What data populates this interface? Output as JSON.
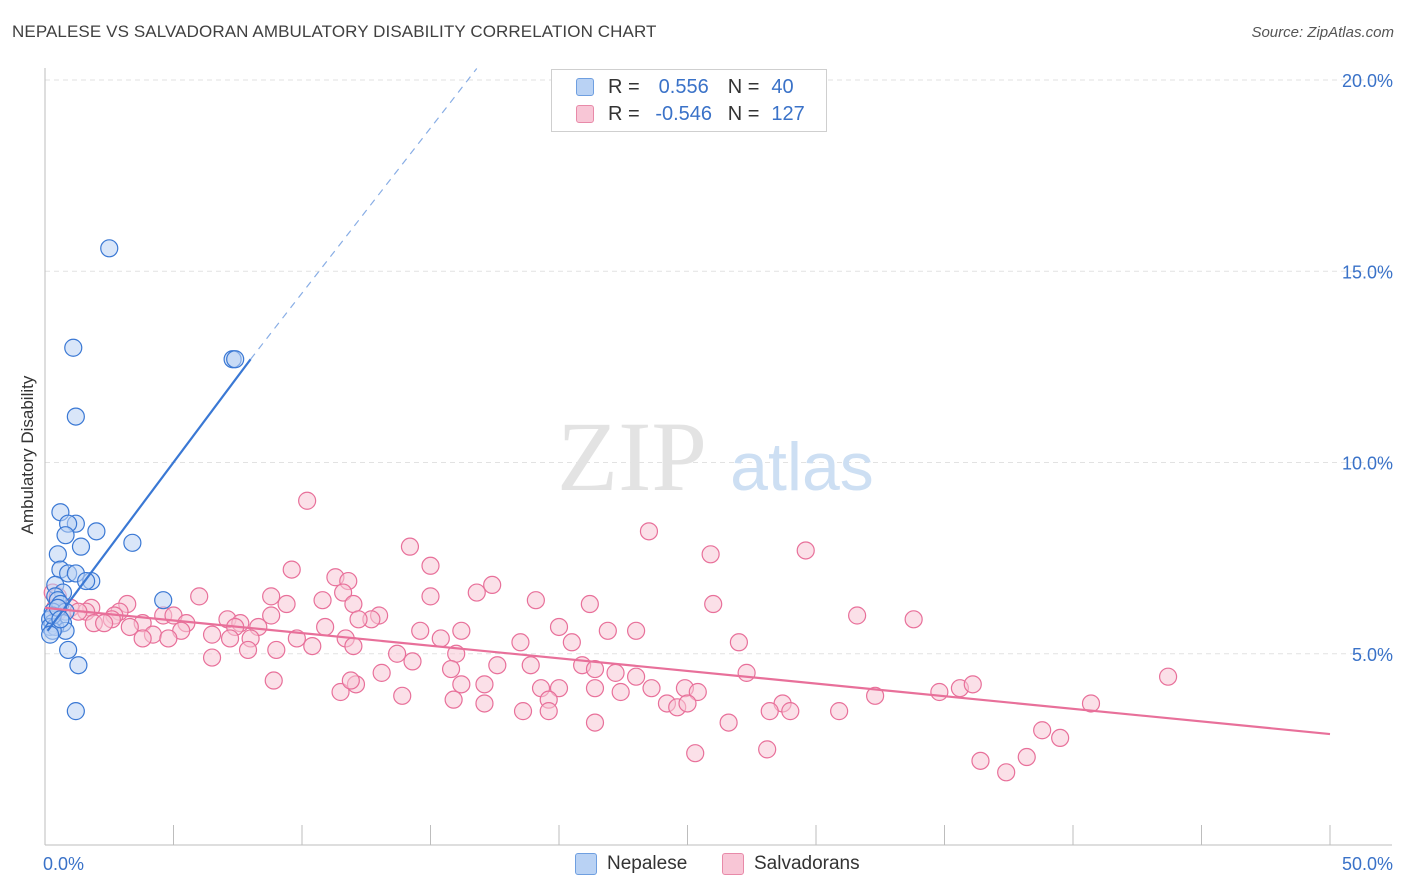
{
  "title": "NEPALESE VS SALVADORAN AMBULATORY DISABILITY CORRELATION CHART",
  "source": "Source: ZipAtlas.com",
  "watermark": {
    "zip": "ZIP",
    "atlas": "atlas"
  },
  "legend": {
    "r_label": "R =",
    "n_label": "N =",
    "nepalese": {
      "r": "0.556",
      "n": "40"
    },
    "salvadoran": {
      "r": "-0.546",
      "n": "127"
    }
  },
  "bottom_legend": {
    "nepalese": "Nepalese",
    "salvadoran": "Salvadorans"
  },
  "colors": {
    "blue": "#3a78d4",
    "pink": "#e8709a",
    "blue_fill": "#b9d2f4",
    "pink_fill": "#f8c6d6"
  },
  "chart_data": {
    "type": "scatter",
    "title": "NEPALESE VS SALVADORAN AMBULATORY DISABILITY CORRELATION CHART",
    "xlabel": "",
    "ylabel": "Ambulatory Disability",
    "xlim": [
      0,
      50
    ],
    "ylim": [
      0,
      20
    ],
    "x_tick_labels": [
      "0.0%",
      "50.0%"
    ],
    "y_ticks": [
      5,
      10,
      15,
      20
    ],
    "y_tick_labels": [
      "5.0%",
      "10.0%",
      "15.0%",
      "20.0%"
    ],
    "series": [
      {
        "name": "Nepalese",
        "color": "#3a78d4",
        "r": 0.556,
        "n": 40,
        "trend": {
          "x": [
            0.1,
            8.0
          ],
          "y": [
            5.6,
            12.7
          ],
          "dashed_to": [
            16.8,
            20.3
          ]
        },
        "points": [
          [
            2.5,
            15.6
          ],
          [
            1.1,
            13.0
          ],
          [
            7.3,
            12.7
          ],
          [
            7.4,
            12.7
          ],
          [
            1.2,
            11.2
          ],
          [
            0.6,
            8.7
          ],
          [
            1.2,
            8.4
          ],
          [
            0.9,
            8.4
          ],
          [
            2.0,
            8.2
          ],
          [
            0.8,
            8.1
          ],
          [
            3.4,
            7.9
          ],
          [
            1.4,
            7.8
          ],
          [
            0.5,
            7.6
          ],
          [
            0.6,
            7.2
          ],
          [
            0.9,
            7.1
          ],
          [
            1.2,
            7.1
          ],
          [
            1.8,
            6.9
          ],
          [
            1.6,
            6.9
          ],
          [
            0.4,
            6.8
          ],
          [
            0.7,
            6.6
          ],
          [
            0.4,
            6.5
          ],
          [
            4.6,
            6.4
          ],
          [
            0.5,
            6.4
          ],
          [
            0.6,
            6.3
          ],
          [
            0.3,
            6.1
          ],
          [
            0.8,
            6.1
          ],
          [
            0.2,
            5.9
          ],
          [
            0.7,
            5.8
          ],
          [
            0.3,
            5.8
          ],
          [
            0.2,
            5.7
          ],
          [
            0.4,
            5.7
          ],
          [
            0.8,
            5.6
          ],
          [
            0.3,
            5.6
          ],
          [
            0.2,
            5.5
          ],
          [
            0.9,
            5.1
          ],
          [
            1.3,
            4.7
          ],
          [
            1.2,
            3.5
          ],
          [
            0.3,
            6.0
          ],
          [
            0.5,
            6.2
          ],
          [
            0.6,
            5.9
          ]
        ]
      },
      {
        "name": "Salvadorans",
        "color": "#e8709a",
        "r": -0.546,
        "n": 127,
        "trend": {
          "x": [
            0.0,
            50.0
          ],
          "y": [
            6.2,
            2.9
          ]
        },
        "points": [
          [
            10.2,
            9.0
          ],
          [
            23.5,
            8.2
          ],
          [
            14.2,
            7.8
          ],
          [
            25.9,
            7.6
          ],
          [
            29.6,
            7.7
          ],
          [
            15.0,
            7.3
          ],
          [
            9.6,
            7.2
          ],
          [
            11.3,
            7.0
          ],
          [
            11.8,
            6.9
          ],
          [
            17.4,
            6.8
          ],
          [
            11.6,
            6.6
          ],
          [
            16.8,
            6.6
          ],
          [
            0.3,
            6.6
          ],
          [
            0.5,
            6.5
          ],
          [
            8.8,
            6.5
          ],
          [
            6.0,
            6.5
          ],
          [
            15.0,
            6.5
          ],
          [
            10.8,
            6.4
          ],
          [
            9.4,
            6.3
          ],
          [
            19.1,
            6.4
          ],
          [
            12.0,
            6.3
          ],
          [
            21.2,
            6.3
          ],
          [
            26.0,
            6.3
          ],
          [
            3.2,
            6.3
          ],
          [
            1.0,
            6.2
          ],
          [
            1.8,
            6.2
          ],
          [
            2.9,
            6.1
          ],
          [
            0.4,
            6.2
          ],
          [
            0.5,
            6.1
          ],
          [
            1.6,
            6.1
          ],
          [
            13.0,
            6.0
          ],
          [
            1.3,
            6.1
          ],
          [
            2.7,
            6.0
          ],
          [
            8.8,
            6.0
          ],
          [
            4.6,
            6.0
          ],
          [
            5.0,
            6.0
          ],
          [
            31.6,
            6.0
          ],
          [
            33.8,
            5.9
          ],
          [
            2.6,
            5.9
          ],
          [
            12.7,
            5.9
          ],
          [
            12.2,
            5.9
          ],
          [
            7.1,
            5.9
          ],
          [
            1.9,
            5.8
          ],
          [
            2.3,
            5.8
          ],
          [
            5.5,
            5.8
          ],
          [
            3.8,
            5.8
          ],
          [
            7.6,
            5.8
          ],
          [
            8.3,
            5.7
          ],
          [
            3.3,
            5.7
          ],
          [
            7.4,
            5.7
          ],
          [
            10.9,
            5.7
          ],
          [
            20.0,
            5.7
          ],
          [
            23.0,
            5.6
          ],
          [
            21.9,
            5.6
          ],
          [
            5.3,
            5.6
          ],
          [
            14.6,
            5.6
          ],
          [
            16.2,
            5.6
          ],
          [
            4.2,
            5.5
          ],
          [
            6.5,
            5.5
          ],
          [
            9.8,
            5.4
          ],
          [
            3.8,
            5.4
          ],
          [
            4.8,
            5.4
          ],
          [
            8.0,
            5.4
          ],
          [
            11.7,
            5.4
          ],
          [
            7.2,
            5.4
          ],
          [
            15.4,
            5.4
          ],
          [
            18.5,
            5.3
          ],
          [
            27.0,
            5.3
          ],
          [
            20.5,
            5.3
          ],
          [
            12.0,
            5.2
          ],
          [
            7.9,
            5.1
          ],
          [
            9.0,
            5.1
          ],
          [
            10.4,
            5.2
          ],
          [
            13.7,
            5.0
          ],
          [
            16.0,
            5.0
          ],
          [
            6.5,
            4.9
          ],
          [
            14.3,
            4.8
          ],
          [
            20.9,
            4.7
          ],
          [
            18.9,
            4.7
          ],
          [
            17.6,
            4.7
          ],
          [
            21.4,
            4.6
          ],
          [
            22.2,
            4.5
          ],
          [
            27.3,
            4.5
          ],
          [
            13.1,
            4.5
          ],
          [
            23.0,
            4.4
          ],
          [
            8.9,
            4.3
          ],
          [
            12.1,
            4.2
          ],
          [
            16.2,
            4.2
          ],
          [
            17.1,
            4.2
          ],
          [
            19.3,
            4.1
          ],
          [
            20.0,
            4.1
          ],
          [
            21.4,
            4.1
          ],
          [
            24.9,
            4.1
          ],
          [
            23.6,
            4.1
          ],
          [
            25.4,
            4.0
          ],
          [
            34.8,
            4.0
          ],
          [
            22.4,
            4.0
          ],
          [
            11.5,
            4.0
          ],
          [
            13.9,
            3.9
          ],
          [
            32.3,
            3.9
          ],
          [
            15.9,
            3.8
          ],
          [
            24.2,
            3.7
          ],
          [
            40.7,
            3.7
          ],
          [
            19.6,
            3.8
          ],
          [
            28.7,
            3.7
          ],
          [
            29.0,
            3.5
          ],
          [
            24.6,
            3.6
          ],
          [
            17.1,
            3.7
          ],
          [
            18.6,
            3.5
          ],
          [
            30.9,
            3.5
          ],
          [
            19.6,
            3.5
          ],
          [
            28.2,
            3.5
          ],
          [
            43.7,
            4.4
          ],
          [
            25.0,
            3.7
          ],
          [
            35.6,
            4.1
          ],
          [
            26.6,
            3.2
          ],
          [
            21.4,
            3.2
          ],
          [
            38.8,
            3.0
          ],
          [
            39.5,
            2.8
          ],
          [
            28.1,
            2.5
          ],
          [
            25.3,
            2.4
          ],
          [
            36.4,
            2.2
          ],
          [
            38.2,
            2.3
          ],
          [
            36.1,
            4.2
          ],
          [
            37.4,
            1.9
          ],
          [
            11.9,
            4.3
          ],
          [
            15.8,
            4.6
          ]
        ]
      }
    ]
  }
}
